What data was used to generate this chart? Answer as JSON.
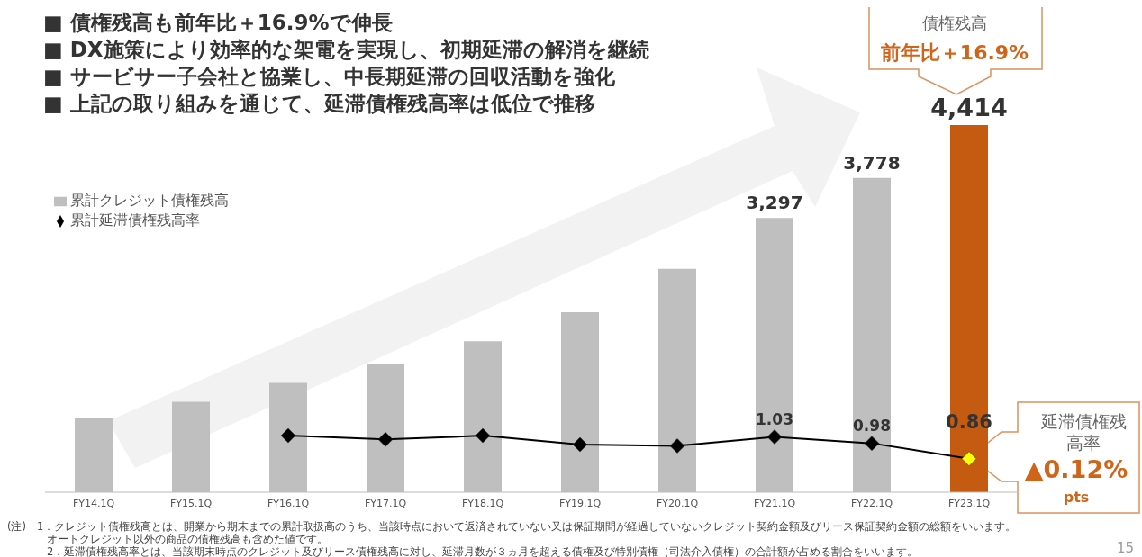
{
  "chart_data": {
    "type": "bar",
    "categories": [
      "FY14.1Q",
      "FY15.1Q",
      "FY16.1Q",
      "FY17.1Q",
      "FY18.1Q",
      "FY19.1Q",
      "FY20.1Q",
      "FY21.1Q",
      "FY22.1Q",
      "FY23.1Q"
    ],
    "series": [
      {
        "name": "累計クレジット債権残高",
        "colors": [
          "#bfbfbf",
          "#bfbfbf",
          "#bfbfbf",
          "#bfbfbf",
          "#bfbfbf",
          "#bfbfbf",
          "#bfbfbf",
          "#bfbfbf",
          "#bfbfbf",
          "#c55a11"
        ],
        "values": [
          891,
          1087,
          1315,
          1544,
          1816,
          2163,
          2685,
          3297,
          3778,
          4414
        ],
        "value_labels": [
          null,
          null,
          null,
          null,
          null,
          null,
          null,
          "3,297",
          "3,778",
          "4,414"
        ]
      },
      {
        "name": "累計延滞債権残高率",
        "type": "line",
        "axis": "y2",
        "color": "#000000",
        "colors": [
          null,
          null,
          "#000000",
          "#000000",
          "#000000",
          "#000000",
          "#000000",
          "#000000",
          "#000000",
          "#ffff00"
        ],
        "values": [
          null,
          null,
          1.04,
          1.01,
          1.04,
          0.97,
          0.96,
          1.03,
          0.98,
          0.86
        ],
        "value_labels": [
          null,
          null,
          null,
          null,
          null,
          null,
          null,
          "1.03",
          "0.98",
          "0.86"
        ]
      }
    ],
    "tick_labels": "x",
    "grid": false,
    "legend": "top left",
    "marker": "diamond",
    "line_style": "solid",
    "annotations": [
      "■ 債権残高も前年比＋16.9%で伸長",
      "■ DX施策により効率的な架電を実現し、初期延滞の解消を継続",
      "■ サービサー子会社と協業し、中長期延滞の回収活動を強化",
      "■ 上記の取り組みを通じて、延滞債権残高率は低位で推移",
      "債権残高",
      "前年比＋16.9%",
      "延滞債権残高率",
      "▲0.12%",
      "pts",
      "(注)　1．クレジット債権残高とは、開業から期末までの累計取扱高のうち、当該時点において返済されていない又は保証期間が経過していないクレジット契約金額及びリース保証契約金額の総額をいいます。",
      "オートクレジット以外の商品の債権残高も含めた値です。",
      "2．延滞債権残高率とは、当該期末時点のクレジット及びリース債権残高に対し、延滞月数が３ヵ月を超える債権及び特別債権（司法介入債権）の合計額が占める割合をいいます。",
      "15"
    ]
  }
}
